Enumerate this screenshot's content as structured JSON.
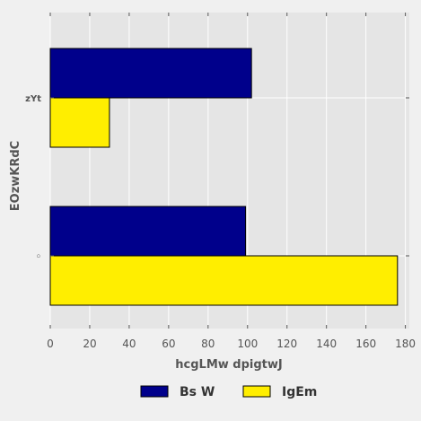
{
  "chart_data": {
    "type": "bar",
    "orientation": "horizontal",
    "categories": [
      "zYt",
      "◦"
    ],
    "series": [
      {
        "name": "Bs W",
        "color": "#00008b",
        "values": [
          102,
          99
        ]
      },
      {
        "name": "IgEm",
        "color": "#ffee00",
        "values": [
          30,
          176
        ]
      }
    ],
    "xlabel": "hcgLMw dpigtwJ",
    "ylabel": "EOzwKRdC",
    "xlim": [
      0,
      182
    ],
    "xticks": [
      0,
      20,
      40,
      60,
      80,
      100,
      120,
      140,
      160,
      180
    ],
    "grid": true,
    "legend_position": "bottom-center",
    "colors": {
      "plot_background": "#e5e5e5",
      "figure_background": "#f0f0f0",
      "grid": "#ffffff"
    }
  }
}
